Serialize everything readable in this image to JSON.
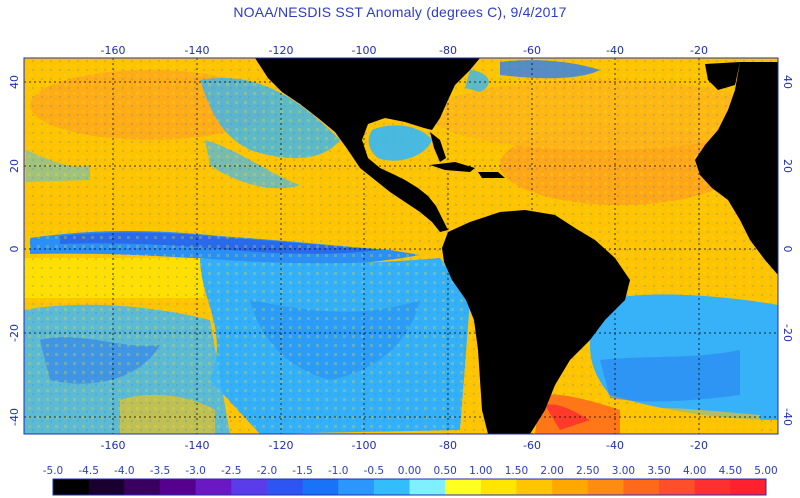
{
  "title": "NOAA/NESDIS SST Anomaly (degrees C), 9/4/2017",
  "axes": {
    "lon_ticks": [
      "-160",
      "-140",
      "-120",
      "-100",
      "-80",
      "-60",
      "-40",
      "-20"
    ],
    "lat_ticks": [
      "40",
      "20",
      "0",
      "-20",
      "-40"
    ]
  },
  "colorbar": {
    "labels": [
      "-5.0",
      "-4.5",
      "-4.0",
      "-3.5",
      "-3.0",
      "-2.5",
      "-2.0",
      "-1.5",
      "-1.0",
      "-0.5",
      "0.00",
      "0.50",
      "1.00",
      "1.50",
      "2.00",
      "2.50",
      "3.00",
      "3.50",
      "4.00",
      "4.50",
      "5.00"
    ],
    "colors": [
      "#000000",
      "#1a0030",
      "#3a0060",
      "#56008e",
      "#6a18c2",
      "#5a3ce8",
      "#2e55f2",
      "#1a72f7",
      "#2b96fb",
      "#33bdfb",
      "#7ef0ff",
      "#ffff20",
      "#ffe600",
      "#ffc600",
      "#ffa800",
      "#ff8c10",
      "#ff6a1a",
      "#ff4e2a",
      "#ff3030",
      "#ff2030"
    ]
  },
  "colors": {
    "land": "#000000",
    "warm": "#ffc400",
    "cool": "#33aef5",
    "frame": "#1f2fb0"
  }
}
